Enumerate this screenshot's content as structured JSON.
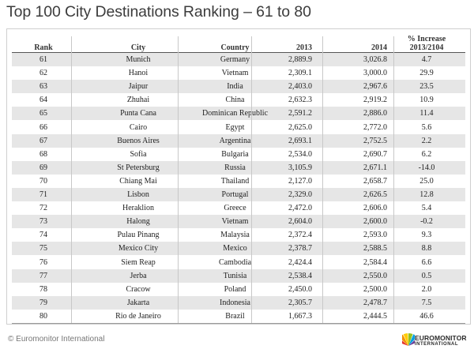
{
  "title": "Top 100 City Destinations Ranking – 61 to 80",
  "table": {
    "headers": {
      "rank": "Rank",
      "city": "City",
      "country": "Country",
      "y2013": "2013",
      "y2014": "2014",
      "pct_line1": "% Increase",
      "pct_line2": "2013/2104"
    },
    "rows": [
      {
        "rank": "61",
        "city": "Munich",
        "country": "Germany",
        "y2013": "2,889.9",
        "y2014": "3,026.8",
        "pct": "4.7"
      },
      {
        "rank": "62",
        "city": "Hanoi",
        "country": "Vietnam",
        "y2013": "2,309.1",
        "y2014": "3,000.0",
        "pct": "29.9"
      },
      {
        "rank": "63",
        "city": "Jaipur",
        "country": "India",
        "y2013": "2,403.0",
        "y2014": "2,967.6",
        "pct": "23.5"
      },
      {
        "rank": "64",
        "city": "Zhuhai",
        "country": "China",
        "y2013": "2,632.3",
        "y2014": "2,919.2",
        "pct": "10.9"
      },
      {
        "rank": "65",
        "city": "Punta Cana",
        "country": "Dominican Republic",
        "y2013": "2,591.2",
        "y2014": "2,886.0",
        "pct": "11.4"
      },
      {
        "rank": "66",
        "city": "Cairo",
        "country": "Egypt",
        "y2013": "2,625.0",
        "y2014": "2,772.0",
        "pct": "5.6"
      },
      {
        "rank": "67",
        "city": "Buenos Aires",
        "country": "Argentina",
        "y2013": "2,693.1",
        "y2014": "2,752.5",
        "pct": "2.2"
      },
      {
        "rank": "68",
        "city": "Sofia",
        "country": "Bulgaria",
        "y2013": "2,534.0",
        "y2014": "2,690.7",
        "pct": "6.2"
      },
      {
        "rank": "69",
        "city": "St Petersburg",
        "country": "Russia",
        "y2013": "3,105.9",
        "y2014": "2,671.1",
        "pct": "-14.0"
      },
      {
        "rank": "70",
        "city": "Chiang Mai",
        "country": "Thailand",
        "y2013": "2,127.0",
        "y2014": "2,658.7",
        "pct": "25.0"
      },
      {
        "rank": "71",
        "city": "Lisbon",
        "country": "Portugal",
        "y2013": "2,329.0",
        "y2014": "2,626.5",
        "pct": "12.8"
      },
      {
        "rank": "72",
        "city": "Heraklion",
        "country": "Greece",
        "y2013": "2,472.0",
        "y2014": "2,606.0",
        "pct": "5.4"
      },
      {
        "rank": "73",
        "city": "Halong",
        "country": "Vietnam",
        "y2013": "2,604.0",
        "y2014": "2,600.0",
        "pct": "-0.2"
      },
      {
        "rank": "74",
        "city": "Pulau Pinang",
        "country": "Malaysia",
        "y2013": "2,372.4",
        "y2014": "2,593.0",
        "pct": "9.3"
      },
      {
        "rank": "75",
        "city": "Mexico City",
        "country": "Mexico",
        "y2013": "2,378.7",
        "y2014": "2,588.5",
        "pct": "8.8"
      },
      {
        "rank": "76",
        "city": "Siem Reap",
        "country": "Cambodia",
        "y2013": "2,424.4",
        "y2014": "2,584.4",
        "pct": "6.6"
      },
      {
        "rank": "77",
        "city": "Jerba",
        "country": "Tunisia",
        "y2013": "2,538.4",
        "y2014": "2,550.0",
        "pct": "0.5"
      },
      {
        "rank": "78",
        "city": "Cracow",
        "country": "Poland",
        "y2013": "2,450.0",
        "y2014": "2,500.0",
        "pct": "2.0"
      },
      {
        "rank": "79",
        "city": "Jakarta",
        "country": "Indonesia",
        "y2013": "2,305.7",
        "y2014": "2,478.7",
        "pct": "7.5"
      },
      {
        "rank": "80",
        "city": "Rio de Janeiro",
        "country": "Brazil",
        "y2013": "1,667.3",
        "y2014": "2,444.5",
        "pct": "46.6"
      }
    ]
  },
  "footer": {
    "copyright": "© Euromonitor International"
  },
  "logo": {
    "line1": "EUROMONITOR",
    "line2": "INTERNATIONAL",
    "fan_colors": [
      "#e5332a",
      "#f39200",
      "#ffcc00",
      "#95c11f",
      "#009fe3",
      "#6b3e98"
    ]
  }
}
